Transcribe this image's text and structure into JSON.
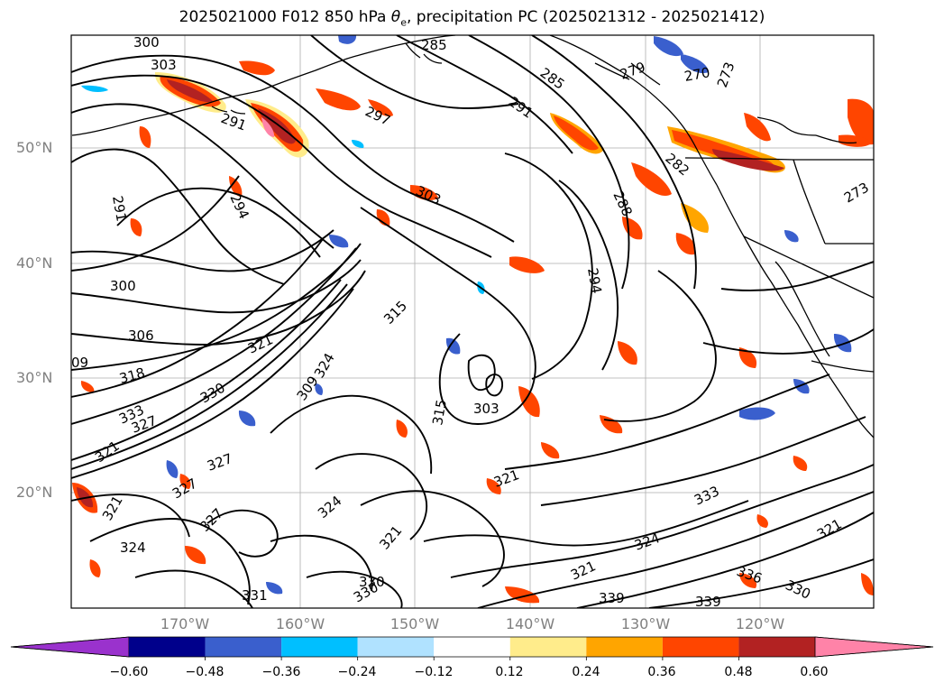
{
  "title": {
    "prefix": "2025021000 F012 850 hPa ",
    "theta_symbol": "θ",
    "theta_sub": "e",
    "suffix": ", precipitation PC (2025021312 - 2025021412)"
  },
  "map": {
    "lat_labels": [
      "50°N",
      "40°N",
      "30°N",
      "20°N"
    ],
    "lon_labels": [
      "170°W",
      "160°W",
      "150°W",
      "140°W",
      "130°W",
      "120°W"
    ],
    "contour_labels": [
      "300",
      "303",
      "285",
      "291",
      "297",
      "285",
      "291",
      "279",
      "270",
      "273",
      "291",
      "294",
      "303",
      "288",
      "282",
      "273",
      "300",
      "294",
      "306",
      "315",
      "09",
      "321",
      "318",
      "324",
      "330",
      "309",
      "333",
      "327",
      "327",
      "321",
      "303",
      "315",
      "321",
      "324",
      "327",
      "327",
      "324",
      "321",
      "331",
      "330",
      "330",
      "321",
      "324",
      "336",
      "330",
      "339",
      "321",
      "339",
      "321",
      "333"
    ]
  },
  "colorbar": {
    "tick_labels": [
      "−0.60",
      "−0.48",
      "−0.36",
      "−0.24",
      "−0.12",
      "0.12",
      "0.24",
      "0.36",
      "0.48",
      "0.60"
    ],
    "colors": [
      "#9a32cd",
      "#00008b",
      "#3a5fcd",
      "#00bfff",
      "#b0e2ff",
      "#ffffff",
      "#ffec8b",
      "#ffa500",
      "#ff4500",
      "#b22222",
      "#ff83a8"
    ]
  }
}
